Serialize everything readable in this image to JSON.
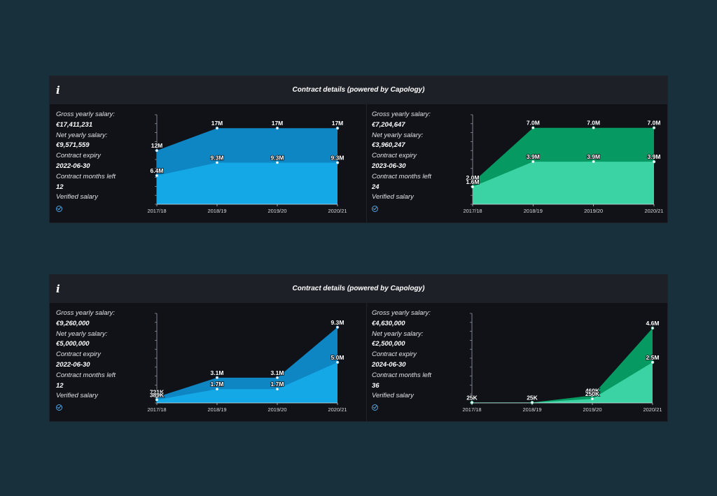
{
  "cards": [
    {
      "title": "Contract details (powered by Capology)",
      "info_icon": "i",
      "players": [
        {
          "stats": [
            {
              "label": "Gross yearly salary:",
              "value": "€17,411,231"
            },
            {
              "label": "Net yearly salary:",
              "value": "€9,571,559"
            },
            {
              "label": "Contract expiry",
              "value": "2022-06-30"
            },
            {
              "label": "Contract months left",
              "value": "12"
            },
            {
              "label": "Verified salary",
              "value": ""
            }
          ]
        },
        {
          "stats": [
            {
              "label": "Gross yearly salary:",
              "value": "€7,204,647"
            },
            {
              "label": "Net yearly salary:",
              "value": "€3,960,247"
            },
            {
              "label": "Contract expiry",
              "value": "2023-06-30"
            },
            {
              "label": "Contract months left",
              "value": "24"
            },
            {
              "label": "Verified salary",
              "value": ""
            }
          ]
        }
      ]
    },
    {
      "title": "Contract details (powered by Capology)",
      "info_icon": "i",
      "players": [
        {
          "stats": [
            {
              "label": "Gross yearly salary:",
              "value": "€9,260,000"
            },
            {
              "label": "Net yearly salary:",
              "value": "€5,000,000"
            },
            {
              "label": "Contract expiry",
              "value": "2022-06-30"
            },
            {
              "label": "Contract months left",
              "value": "12"
            },
            {
              "label": "Verified salary",
              "value": ""
            }
          ]
        },
        {
          "stats": [
            {
              "label": "Gross yearly salary:",
              "value": "€4,630,000"
            },
            {
              "label": "Net yearly salary:",
              "value": "€2,500,000"
            },
            {
              "label": "Contract expiry",
              "value": "2024-06-30"
            },
            {
              "label": "Contract months left",
              "value": "36"
            },
            {
              "label": "Verified salary",
              "value": ""
            }
          ]
        }
      ]
    }
  ],
  "chart_data": [
    {
      "type": "area",
      "categories": [
        "2017/18",
        "2018/19",
        "2019/20",
        "2020/21"
      ],
      "series": [
        {
          "values": [
            12,
            17,
            17,
            17
          ],
          "labels": [
            "12M",
            "17M",
            "17M",
            "17M"
          ],
          "color": "#0f86c4"
        },
        {
          "values": [
            6.4,
            9.3,
            9.3,
            9.3
          ],
          "labels": [
            "6.4M",
            "9.3M",
            "9.3M",
            "9.3M"
          ],
          "color": "#14a8e6"
        }
      ],
      "ylim": [
        0,
        20
      ]
    },
    {
      "type": "area",
      "categories": [
        "2017/18",
        "2018/19",
        "2019/20",
        "2020/21"
      ],
      "series": [
        {
          "values": [
            2.0,
            7.0,
            7.0,
            7.0
          ],
          "labels": [
            "2.0M",
            "7.0M",
            "7.0M",
            "7.0M"
          ],
          "color": "#069a62"
        },
        {
          "values": [
            1.6,
            3.9,
            3.9,
            3.9
          ],
          "labels": [
            "1.6M",
            "3.9M",
            "3.9M",
            "3.9M"
          ],
          "color": "#3bd3a3"
        }
      ],
      "ylim": [
        0,
        8.2
      ]
    },
    {
      "type": "area",
      "categories": [
        "2017/18",
        "2018/19",
        "2019/20",
        "2020/21"
      ],
      "series": [
        {
          "values": [
            0.721,
            3.1,
            3.1,
            9.3
          ],
          "labels": [
            "721K",
            "3.1M",
            "3.1M",
            "9.3M"
          ],
          "color": "#0f86c4"
        },
        {
          "values": [
            0.389,
            1.7,
            1.7,
            5.0
          ],
          "labels": [
            "389K",
            "1.7M",
            "1.7M",
            "5.0M"
          ],
          "color": "#14a8e6"
        }
      ],
      "ylim": [
        0,
        11
      ]
    },
    {
      "type": "area",
      "categories": [
        "2017/18",
        "2018/19",
        "2019/20",
        "2020/21"
      ],
      "series": [
        {
          "values": [
            0.025,
            0.025,
            0.46,
            4.6
          ],
          "labels": [
            "25K",
            "25K",
            "460K",
            "4.6M"
          ],
          "color": "#069a62"
        },
        {
          "values": [
            0.025,
            0.025,
            0.25,
            2.5
          ],
          "labels": [
            "",
            "",
            "250K",
            "2.5M"
          ],
          "color": "#3bd3a3"
        }
      ],
      "ylim": [
        0,
        5.5
      ]
    }
  ]
}
